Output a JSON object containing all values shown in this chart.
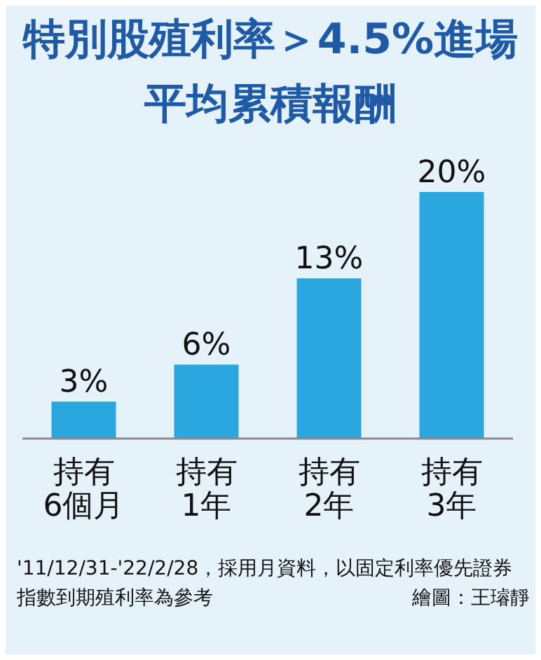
{
  "chart_data": {
    "type": "bar",
    "title": "特別股殖利率＞4.5%進場平均累積報酬",
    "categories": [
      "持有\n6個月",
      "持有\n1年",
      "持有\n2年",
      "持有\n3年"
    ],
    "values": [
      3,
      6,
      13,
      20
    ],
    "value_labels": [
      "3%",
      "6%",
      "13%",
      "20%"
    ],
    "color": "#2aa7df",
    "annotations": [
      "'11/12/31-'22/2/28，採用月資料，以固定利率優先證券指數到期殖利率為參考",
      "繪圖：王璿靜"
    ]
  }
}
